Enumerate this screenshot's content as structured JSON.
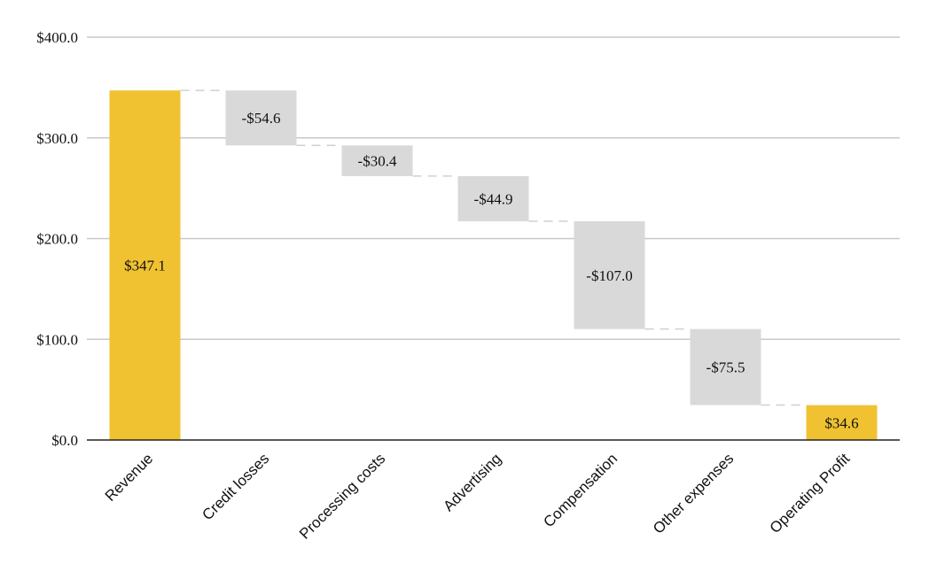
{
  "chart_data": {
    "type": "bar",
    "subtype": "waterfall",
    "title": "",
    "xlabel": "",
    "ylabel": "",
    "ylim": [
      0,
      400
    ],
    "y_ticks": [
      0,
      100,
      200,
      300,
      400
    ],
    "y_tick_labels": [
      "$0.0",
      "$100.0",
      "$200.0",
      "$300.0",
      "$400.0"
    ],
    "categories": [
      "Revenue",
      "Credit losses",
      "Processing costs",
      "Advertising",
      "Compensation",
      "Other expenses",
      "Operating Profit"
    ],
    "values": [
      347.1,
      -54.6,
      -30.4,
      -44.9,
      -107.0,
      -75.5,
      34.6
    ],
    "kinds": [
      "total",
      "delta",
      "delta",
      "delta",
      "delta",
      "delta",
      "total"
    ],
    "data_labels": [
      "$347.1",
      "-$54.6",
      "-$30.4",
      "-$44.9",
      "-$107.0",
      "-$75.5",
      "$34.6"
    ],
    "grid": true,
    "legend": "none",
    "colors": {
      "total": "#f0c232",
      "delta": "#d9d9d9",
      "connector": "#d0d0d0",
      "grid": "#c8c8c8",
      "axis": "#222222"
    }
  }
}
